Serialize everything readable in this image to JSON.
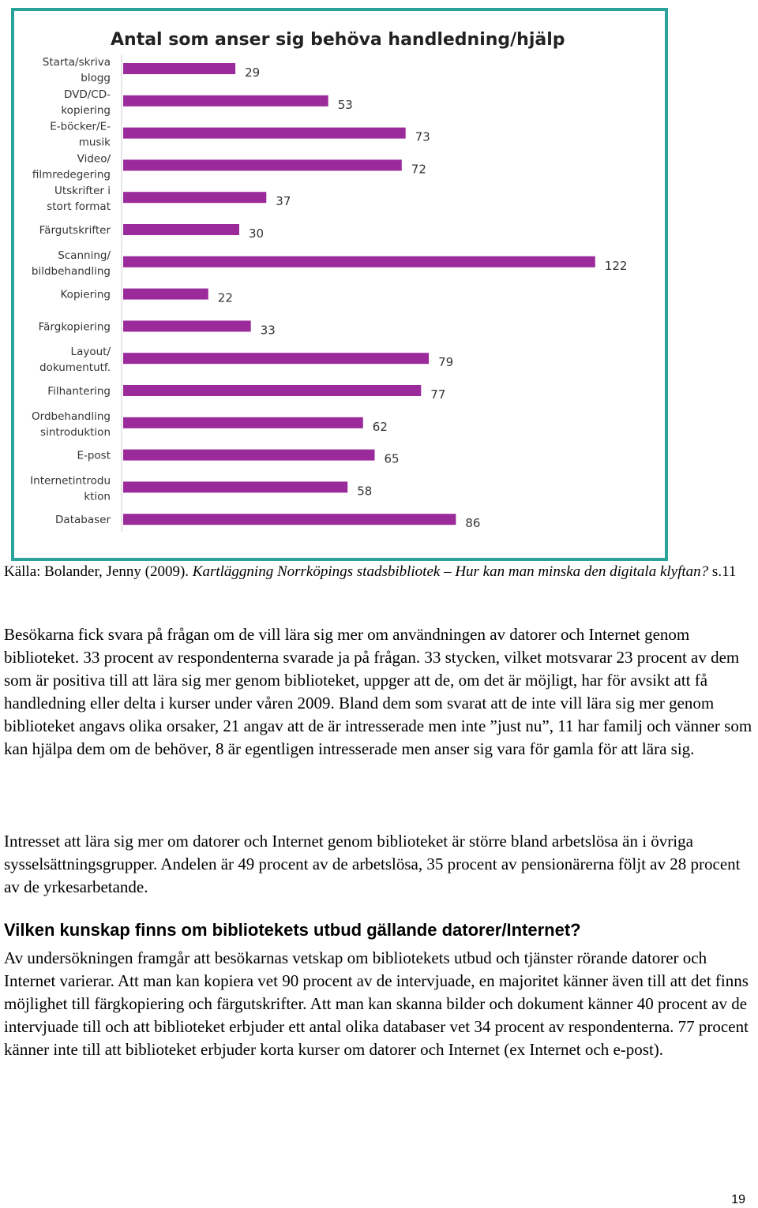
{
  "chart_data": {
    "type": "bar",
    "orientation": "horizontal",
    "title": "Antal som anser sig behöva handledning/hjälp",
    "categories": [
      [
        "Starta/skriva",
        "blogg"
      ],
      [
        "DVD/CD-",
        "kopiering"
      ],
      [
        "E-böcker/E-",
        "musik"
      ],
      [
        "Video/",
        "filmredegering"
      ],
      [
        "Utskrifter i",
        "stort format"
      ],
      [
        "Färgutskrifter"
      ],
      [
        "Scanning/",
        "bildbehandling"
      ],
      [
        "Kopiering"
      ],
      [
        "Färgkopiering"
      ],
      [
        "Layout/",
        "dokumentutf."
      ],
      [
        "Filhantering"
      ],
      [
        "Ordbehandling",
        "sintroduktion"
      ],
      [
        "E-post"
      ],
      [
        "Internetintrodu",
        "ktion"
      ],
      [
        "Databaser"
      ]
    ],
    "values": [
      29,
      53,
      73,
      72,
      37,
      30,
      122,
      22,
      33,
      79,
      77,
      62,
      65,
      58,
      86
    ],
    "bar_color": "#9b2a9b",
    "frame_color": "#2aa49a"
  },
  "caption": {
    "prefix": "Källa: Bolander, Jenny (2009). ",
    "title": "Kartläggning Norrköpings stadsbibliotek – Hur kan man minska den digitala klyftan?",
    "suffix": " s.11"
  },
  "paragraphs": {
    "p1": "Besökarna fick svara på frågan om de vill lära sig mer om användningen av datorer och Internet genom biblioteket. 33 procent av respondenterna svarade ja på frågan. 33 stycken, vilket motsvarar 23 procent av dem som är positiva till att lära sig mer genom biblioteket, uppger att de, om det är möjligt, har för avsikt att få handledning eller delta i kurser under våren 2009. Bland dem som svarat att de inte vill lära sig mer genom biblioteket angavs olika orsaker, 21 angav att de är intresserade men inte ”just nu”, 11 har familj och vänner som kan hjälpa dem om de behöver, 8 är egentligen intresserade men anser sig vara för gamla för att lära sig.",
    "p2": "Intresset att lära sig mer om datorer och Internet genom biblioteket är större bland arbetslösa än i övriga sysselsättningsgrupper. Andelen är 49 procent av de arbetslösa, 35 procent av pensionärerna följt av 28 procent av de yrkesarbetande.",
    "heading": "Vilken kunskap finns om bibliotekets utbud gällande datorer/Internet?",
    "p3": "Av undersökningen framgår att besökarnas vetskap om bibliotekets utbud och tjänster rörande datorer och Internet varierar. Att man kan kopiera vet 90 procent av de intervjuade, en majoritet känner även till att det finns möjlighet till färgkopiering och färgutskrifter. Att man kan skanna bilder och dokument känner 40 procent av de intervjuade till och att biblioteket erbjuder ett antal olika databaser vet 34 procent av respondenterna. 77 procent känner inte till att biblioteket erbjuder korta kurser om datorer och Internet (ex Internet och e-post)."
  },
  "page_number": "19"
}
